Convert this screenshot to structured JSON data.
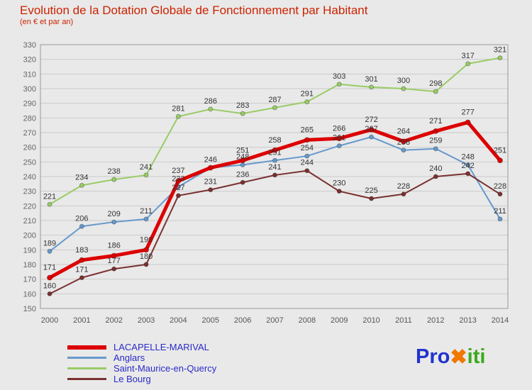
{
  "title": "Evolution de la Dotation Globale de Fonctionnement par Habitant",
  "subtitle": "(en € et par an)",
  "chart_data": {
    "type": "line",
    "x": [
      2000,
      2001,
      2002,
      2003,
      2004,
      2005,
      2006,
      2007,
      2008,
      2009,
      2010,
      2011,
      2012,
      2013,
      2014
    ],
    "series": [
      {
        "name": "Saint-Maurice-en-Quercy",
        "color": "#99cc66",
        "width": 2,
        "values": [
          221,
          234,
          238,
          241,
          281,
          286,
          283,
          287,
          291,
          303,
          301,
          300,
          298,
          317,
          321
        ]
      },
      {
        "name": "Anglars",
        "color": "#6699cc",
        "width": 2,
        "values": [
          189,
          206,
          209,
          211,
          233,
          246,
          248,
          251,
          254,
          261,
          267,
          258,
          259,
          248,
          211
        ]
      },
      {
        "name": "Le Bourg",
        "color": "#7a3030",
        "width": 2,
        "values": [
          160,
          171,
          177,
          180,
          227,
          231,
          236,
          241,
          244,
          230,
          225,
          228,
          240,
          242,
          228
        ]
      },
      {
        "name": "LACAPELLE-MARIVAL",
        "color": "#dd0000",
        "width": 5,
        "values": [
          171,
          183,
          186,
          190,
          237,
          246,
          251,
          258,
          265,
          266,
          272,
          264,
          271,
          277,
          251
        ]
      }
    ],
    "ylim": [
      150,
      330
    ],
    "ytick_step": 10,
    "grid": true,
    "legend_position": "bottom-left",
    "label_color": "#333333",
    "axis_color": "#999999",
    "grid_color": "#cbcbcb",
    "ytick_color": "#666666",
    "xtick_color": "#555555"
  },
  "legend_order": [
    3,
    1,
    0,
    2
  ],
  "logo": {
    "text_pro": "Pro",
    "text_x": "✖",
    "text_iti": "iti",
    "color_pro": "#2233cc",
    "color_x": "#f07800",
    "color_iti": "#3aaa1e"
  }
}
